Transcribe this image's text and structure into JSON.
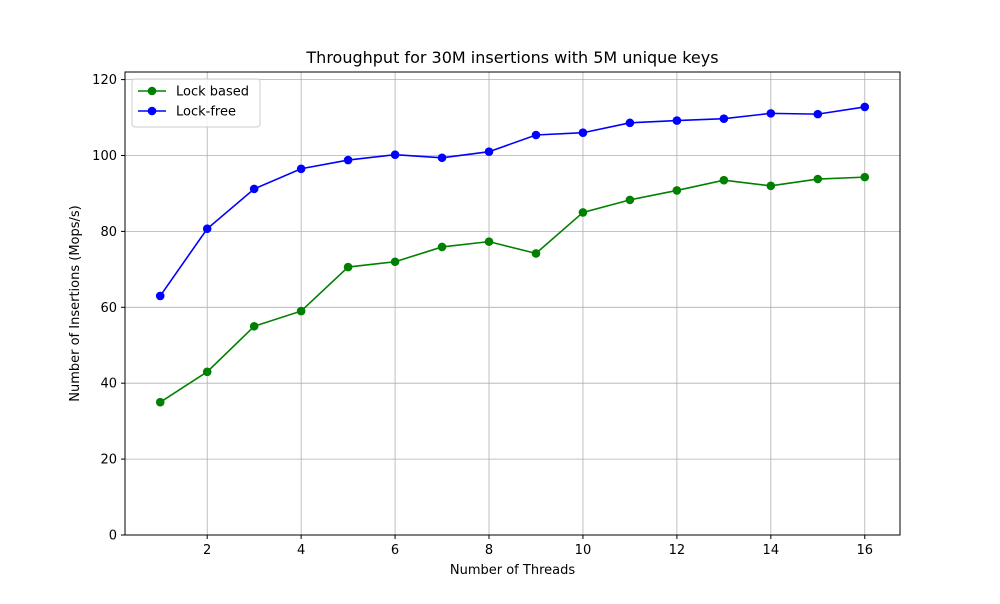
{
  "chart_data": {
    "type": "line",
    "title": "Throughput for 30M insertions with 5M unique keys",
    "xlabel": "Number of Threads",
    "ylabel": "Number of Insertions (Mops/s)",
    "xlim": [
      0.25,
      16.75
    ],
    "ylim": [
      0,
      122
    ],
    "xticks": [
      2,
      4,
      6,
      8,
      10,
      12,
      14,
      16
    ],
    "yticks": [
      0,
      20,
      40,
      60,
      80,
      100,
      120
    ],
    "grid": true,
    "legend_position": "top-left",
    "x": [
      1,
      2,
      3,
      4,
      5,
      6,
      7,
      8,
      9,
      10,
      11,
      12,
      13,
      14,
      15,
      16
    ],
    "series": [
      {
        "name": "Lock based",
        "color": "#008000",
        "marker": "circle",
        "values": [
          35,
          43,
          55,
          59,
          70.6,
          72,
          75.9,
          77.3,
          74.2,
          85,
          88.3,
          90.8,
          93.5,
          92,
          93.8,
          94.3
        ]
      },
      {
        "name": "Lock-free",
        "color": "#0000ff",
        "marker": "circle",
        "values": [
          63,
          80.7,
          91.2,
          96.5,
          98.8,
          100.2,
          99.4,
          101,
          105.4,
          106,
          108.6,
          109.2,
          109.7,
          111.1,
          110.9,
          112.8
        ]
      }
    ]
  }
}
